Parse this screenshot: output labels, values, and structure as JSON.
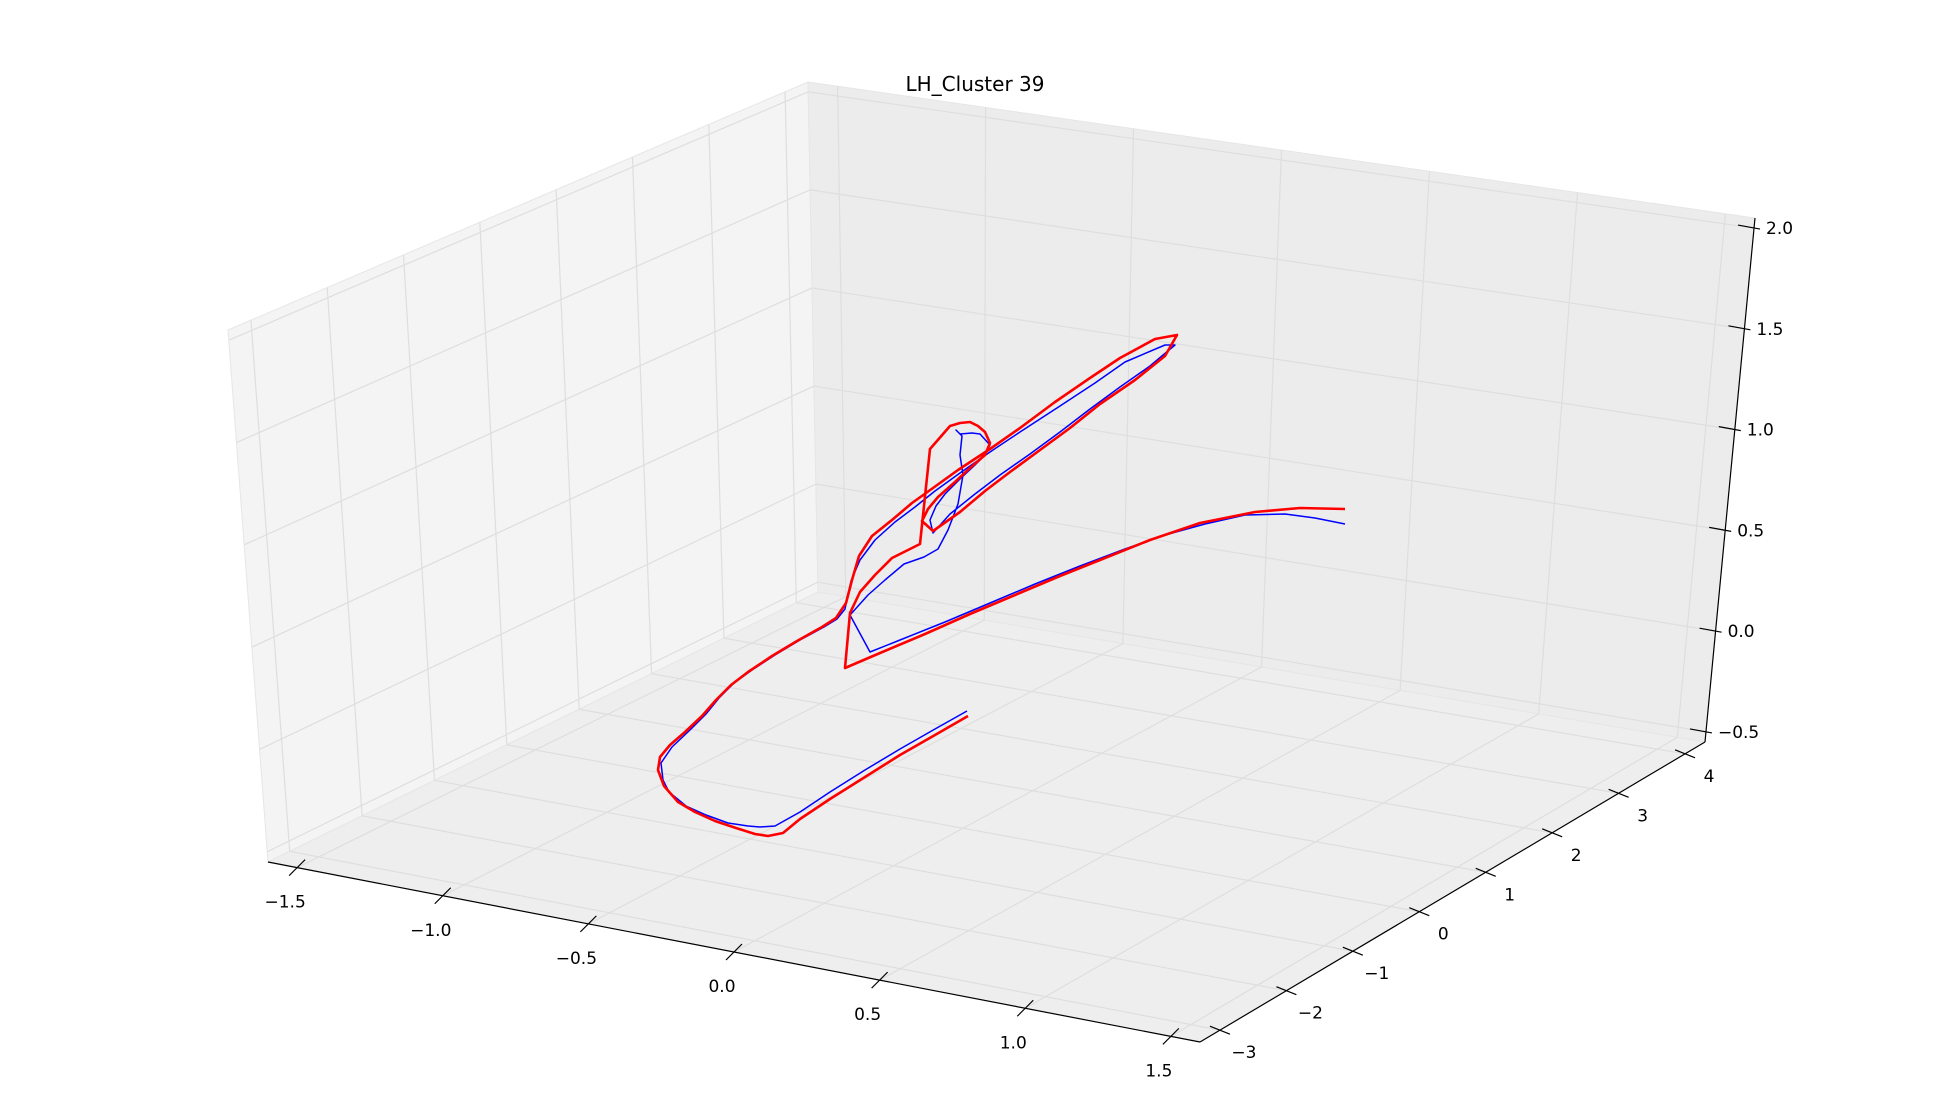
{
  "chart_data": {
    "type": "line3d",
    "title": "LH_Cluster 39",
    "x_axis": {
      "ticks": [
        -1.5,
        -1.0,
        -0.5,
        0.0,
        0.5,
        1.0,
        1.5
      ],
      "tick_labels": [
        "−1.5",
        "−1.0",
        "−0.5",
        "0.0",
        "0.5",
        "1.0",
        "1.5"
      ]
    },
    "y_axis": {
      "ticks": [
        -3,
        -2,
        -1,
        0,
        1,
        2,
        3,
        4
      ],
      "tick_labels": [
        "−3",
        "−2",
        "−1",
        "0",
        "1",
        "2",
        "3",
        "4"
      ]
    },
    "z_axis": {
      "ticks": [
        -0.5,
        0.0,
        0.5,
        1.0,
        1.5,
        2.0
      ],
      "tick_labels": [
        "−0.5",
        "0.0",
        "0.5",
        "1.0",
        "1.5",
        "2.0"
      ]
    },
    "grid": true,
    "series": [
      {
        "color": "#0000ff",
        "line_width": "thin"
      },
      {
        "color": "#ff0000",
        "line_width": "thick"
      }
    ]
  }
}
